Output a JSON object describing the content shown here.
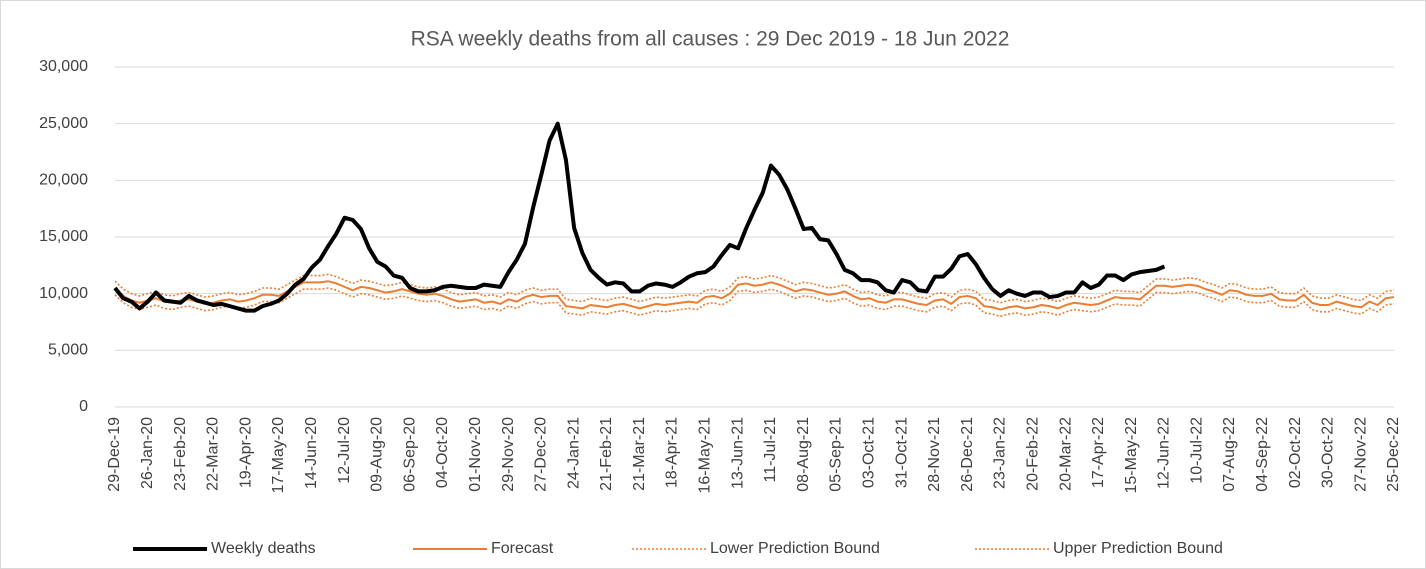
{
  "chart_data": {
    "type": "line",
    "title": "RSA weekly deaths from all causes : 29 Dec 2019 - 18 Jun 2022",
    "categories": [
      "29-Dec-19",
      null,
      null,
      null,
      "26-Jan-20",
      null,
      null,
      null,
      "23-Feb-20",
      null,
      null,
      null,
      "22-Mar-20",
      null,
      null,
      null,
      "19-Apr-20",
      null,
      null,
      null,
      "17-May-20",
      null,
      null,
      null,
      "14-Jun-20",
      null,
      null,
      null,
      "12-Jul-20",
      null,
      null,
      null,
      "09-Aug-20",
      null,
      null,
      null,
      "06-Sep-20",
      null,
      null,
      null,
      "04-Oct-20",
      null,
      null,
      null,
      "01-Nov-20",
      null,
      null,
      null,
      "29-Nov-20",
      null,
      null,
      null,
      "27-Dec-20",
      null,
      null,
      null,
      "24-Jan-21",
      null,
      null,
      null,
      "21-Feb-21",
      null,
      null,
      null,
      "21-Mar-21",
      null,
      null,
      null,
      "18-Apr-21",
      null,
      null,
      null,
      "16-May-21",
      null,
      null,
      null,
      "13-Jun-21",
      null,
      null,
      null,
      "11-Jul-21",
      null,
      null,
      null,
      "08-Aug-21",
      null,
      null,
      null,
      "05-Sep-21",
      null,
      null,
      null,
      "03-Oct-21",
      null,
      null,
      null,
      "31-Oct-21",
      null,
      null,
      null,
      "28-Nov-21",
      null,
      null,
      null,
      "26-Dec-21",
      null,
      null,
      null,
      "23-Jan-22",
      null,
      null,
      null,
      "20-Feb-22",
      null,
      null,
      null,
      "20-Mar-22",
      null,
      null,
      null,
      "17-Apr-22",
      null,
      null,
      null,
      "15-May-22",
      null,
      null,
      null,
      "12-Jun-22",
      null,
      null,
      null,
      "10-Jul-22",
      null,
      null,
      null,
      "07-Aug-22",
      null,
      null,
      null,
      "04-Sep-22",
      null,
      null,
      null,
      "02-Oct-22",
      null,
      null,
      null,
      "30-Oct-22",
      null,
      null,
      null,
      "27-Nov-22",
      null,
      null,
      null,
      "25-Dec-22"
    ],
    "series": [
      {
        "name": "Weekly deaths",
        "color": "#000000",
        "style": "bold",
        "values": [
          10500,
          9600,
          9300,
          8700,
          9300,
          10100,
          9400,
          9300,
          9200,
          9800,
          9400,
          9200,
          9000,
          9100,
          8900,
          8700,
          8500,
          8500,
          8900,
          9100,
          9400,
          10000,
          10800,
          11300,
          12300,
          13000,
          14200,
          15300,
          16700,
          16500,
          15700,
          14000,
          12800,
          12400,
          11600,
          11400,
          10500,
          10200,
          10200,
          10300,
          10600,
          10700,
          10600,
          10500,
          10500,
          10800,
          10700,
          10600,
          11900,
          13000,
          14400,
          17600,
          20500,
          23500,
          25000,
          21800,
          15800,
          13600,
          12100,
          11400,
          10800,
          11000,
          10900,
          10200,
          10200,
          10700,
          10900,
          10800,
          10600,
          11000,
          11500,
          11800,
          11900,
          12400,
          13400,
          14300,
          14000,
          15800,
          17400,
          18900,
          21300,
          20500,
          19200,
          17500,
          15700,
          15800,
          14800,
          14700,
          13500,
          12100,
          11800,
          11200,
          11200,
          11000,
          10300,
          10100,
          11200,
          11000,
          10300,
          10200,
          11500,
          11500,
          12200,
          13300,
          13500,
          12600,
          11400,
          10400,
          9800,
          10300,
          10000,
          9800,
          10100,
          10100,
          9700,
          9800,
          10100,
          10100,
          11000,
          10500,
          10800,
          11600,
          11600,
          11200,
          11700,
          11900,
          12000,
          12100,
          12400,
          null,
          null,
          null,
          null,
          null,
          null,
          null,
          null,
          null,
          null,
          null,
          null,
          null,
          null,
          null,
          null,
          null,
          null,
          null,
          null,
          null,
          null,
          null,
          null,
          null,
          null,
          null,
          null
        ]
      },
      {
        "name": "Forecast",
        "color": "#ed7d31",
        "style": "solid",
        "values": [
          10500,
          9800,
          9400,
          9200,
          9400,
          9600,
          9300,
          9200,
          9400,
          9500,
          9300,
          9100,
          9200,
          9400,
          9500,
          9300,
          9400,
          9600,
          9900,
          9900,
          9800,
          10200,
          10600,
          11000,
          11000,
          11000,
          11100,
          10900,
          10600,
          10300,
          10600,
          10500,
          10300,
          10100,
          10200,
          10400,
          10200,
          10000,
          9900,
          10000,
          9800,
          9500,
          9300,
          9400,
          9500,
          9200,
          9300,
          9100,
          9500,
          9300,
          9700,
          9900,
          9700,
          9800,
          9800,
          8900,
          8800,
          8700,
          9000,
          8900,
          8800,
          9000,
          9100,
          8900,
          8700,
          8900,
          9100,
          9000,
          9100,
          9200,
          9300,
          9200,
          9700,
          9800,
          9600,
          10000,
          10800,
          10900,
          10700,
          10800,
          11000,
          10800,
          10500,
          10200,
          10400,
          10300,
          10100,
          9900,
          10000,
          10200,
          9800,
          9500,
          9600,
          9300,
          9200,
          9500,
          9500,
          9300,
          9100,
          9000,
          9400,
          9500,
          9100,
          9700,
          9800,
          9600,
          8900,
          8800,
          8600,
          8800,
          8900,
          8700,
          8800,
          9000,
          8900,
          8700,
          9000,
          9200,
          9100,
          9000,
          9100,
          9400,
          9700,
          9600,
          9600,
          9500,
          10100,
          10700,
          10700,
          10600,
          10700,
          10800,
          10700,
          10400,
          10200,
          9900,
          10300,
          10200,
          9900,
          9800,
          9800,
          10000,
          9500,
          9400,
          9400,
          9900,
          9200,
          9000,
          9000,
          9300,
          9100,
          8900,
          8800,
          9300,
          9000,
          9600,
          9700
        ]
      },
      {
        "name": "Lower Prediction Bound",
        "color": "#ed7d31",
        "style": "dotted",
        "values": [
          9900,
          9200,
          8800,
          8600,
          8800,
          9000,
          8700,
          8600,
          8800,
          8900,
          8700,
          8500,
          8600,
          8800,
          8900,
          8700,
          8800,
          9000,
          9300,
          9300,
          9200,
          9600,
          10000,
          10400,
          10400,
          10400,
          10500,
          10300,
          10000,
          9700,
          10000,
          9900,
          9700,
          9500,
          9600,
          9800,
          9600,
          9400,
          9300,
          9400,
          9200,
          8900,
          8700,
          8800,
          8900,
          8600,
          8700,
          8500,
          8900,
          8700,
          9100,
          9300,
          9100,
          9200,
          9200,
          8300,
          8200,
          8100,
          8400,
          8300,
          8200,
          8400,
          8500,
          8300,
          8100,
          8300,
          8500,
          8400,
          8500,
          8600,
          8700,
          8600,
          9100,
          9200,
          9000,
          9400,
          10200,
          10300,
          10100,
          10200,
          10400,
          10200,
          9900,
          9600,
          9800,
          9700,
          9500,
          9300,
          9400,
          9600,
          9200,
          8900,
          9000,
          8700,
          8600,
          8900,
          8900,
          8700,
          8500,
          8400,
          8800,
          8900,
          8500,
          9100,
          9200,
          9000,
          8300,
          8200,
          8000,
          8200,
          8300,
          8100,
          8200,
          8400,
          8300,
          8100,
          8400,
          8600,
          8500,
          8400,
          8500,
          8800,
          9100,
          9000,
          9000,
          8900,
          9500,
          10100,
          10100,
          10000,
          10100,
          10200,
          10100,
          9800,
          9600,
          9300,
          9700,
          9600,
          9300,
          9200,
          9200,
          9400,
          8900,
          8800,
          8800,
          9300,
          8600,
          8400,
          8400,
          8700,
          8500,
          8300,
          8200,
          8700,
          8400,
          9000,
          9100
        ]
      },
      {
        "name": "Upper Prediction Bound",
        "color": "#ed7d31",
        "style": "dotted",
        "values": [
          11100,
          10400,
          10000,
          9800,
          10000,
          10200,
          9900,
          9800,
          10000,
          10100,
          9900,
          9700,
          9800,
          10000,
          10100,
          9900,
          10000,
          10200,
          10500,
          10500,
          10400,
          10800,
          11200,
          11600,
          11600,
          11600,
          11700,
          11500,
          11200,
          10900,
          11200,
          11100,
          10900,
          10700,
          10800,
          11000,
          10800,
          10600,
          10500,
          10600,
          10400,
          10100,
          9900,
          10000,
          10100,
          9800,
          9900,
          9700,
          10100,
          9900,
          10300,
          10500,
          10300,
          10400,
          10400,
          9500,
          9400,
          9300,
          9600,
          9500,
          9400,
          9600,
          9700,
          9500,
          9300,
          9500,
          9700,
          9600,
          9700,
          9800,
          9900,
          9800,
          10300,
          10400,
          10200,
          10600,
          11400,
          11500,
          11300,
          11400,
          11600,
          11400,
          11100,
          10800,
          11000,
          10900,
          10700,
          10500,
          10600,
          10800,
          10400,
          10100,
          10200,
          9900,
          9800,
          10100,
          10100,
          9900,
          9700,
          9600,
          10000,
          10100,
          9700,
          10300,
          10400,
          10200,
          9500,
          9400,
          9200,
          9400,
          9500,
          9300,
          9400,
          9600,
          9500,
          9300,
          9600,
          9800,
          9700,
          9600,
          9700,
          10000,
          10300,
          10200,
          10200,
          10100,
          10700,
          11300,
          11300,
          11200,
          11300,
          11400,
          11300,
          11000,
          10800,
          10500,
          10900,
          10800,
          10500,
          10400,
          10400,
          10600,
          10100,
          10000,
          10000,
          10500,
          9800,
          9600,
          9600,
          9900,
          9700,
          9500,
          9400,
          9900,
          9600,
          10200,
          10300
        ]
      }
    ],
    "ylim": [
      0,
      30000
    ],
    "yticks": [
      0,
      {
        "value": 5000,
        "label": "5,000"
      },
      {
        "value": 10000,
        "label": "10,000"
      },
      {
        "value": 15000,
        "label": "15,000"
      },
      {
        "value": 20000,
        "label": "20,000"
      },
      {
        "value": 25000,
        "label": "25,000"
      },
      {
        "value": 30000,
        "label": "30,000"
      }
    ],
    "grid": true,
    "legend": "bottom"
  }
}
